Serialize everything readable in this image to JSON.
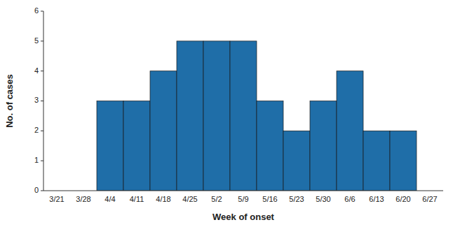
{
  "chart_data": {
    "type": "bar",
    "categories": [
      "3/21",
      "3/28",
      "4/4",
      "4/11",
      "4/18",
      "4/25",
      "5/2",
      "5/9",
      "5/16",
      "5/23",
      "5/30",
      "6/6",
      "6/13",
      "6/20",
      "6/27"
    ],
    "values": [
      0,
      0,
      3,
      3,
      4,
      5,
      5,
      5,
      3,
      2,
      3,
      4,
      2,
      2,
      0
    ],
    "color": "#1F6EA8",
    "x_label": "Week of onset",
    "y_label": "No. of cases",
    "ylim": [
      0,
      6
    ],
    "yticks": [
      0,
      1,
      2,
      3,
      4,
      5,
      6
    ],
    "grid": false
  }
}
